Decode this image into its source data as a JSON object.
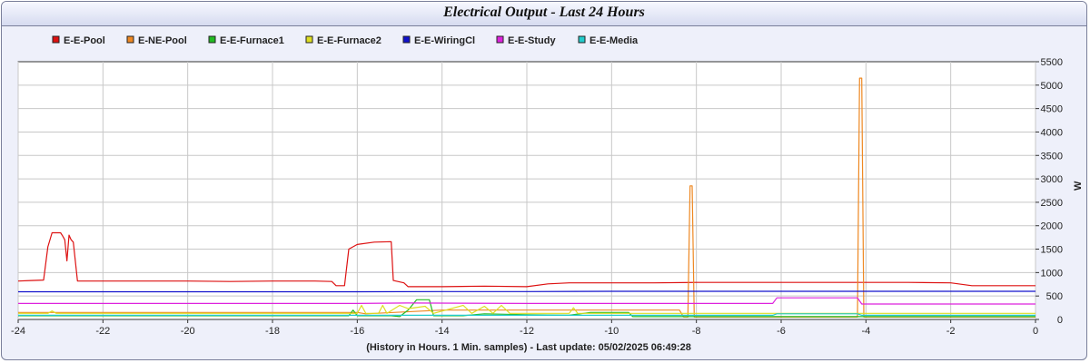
{
  "chart_data": {
    "type": "line",
    "title": "Electrical Output - Last 24 Hours",
    "xlabel": "(History in Hours. 1 Min. samples) - Last update: 05/02/2025 06:49:28",
    "ylabel": "W",
    "xlim": [
      -24,
      0
    ],
    "ylim": [
      0,
      5500
    ],
    "x_ticks": [
      -24,
      -22,
      -20,
      -18,
      -16,
      -14,
      -12,
      -10,
      -8,
      -6,
      -4,
      -2,
      0
    ],
    "y_ticks": [
      0,
      500,
      1000,
      1500,
      2000,
      2500,
      3000,
      3500,
      4000,
      4500,
      5000,
      5500
    ],
    "grid": true,
    "legend_position": "top",
    "series": [
      {
        "name": "E-E-Pool",
        "color": "#dd1111",
        "points": [
          [
            -24,
            820
          ],
          [
            -23.7,
            830
          ],
          [
            -23.4,
            840
          ],
          [
            -23.3,
            1550
          ],
          [
            -23.2,
            1850
          ],
          [
            -23.0,
            1850
          ],
          [
            -22.95,
            1780
          ],
          [
            -22.9,
            1700
          ],
          [
            -22.85,
            1250
          ],
          [
            -22.8,
            1800
          ],
          [
            -22.75,
            1700
          ],
          [
            -22.7,
            1650
          ],
          [
            -22.6,
            820
          ],
          [
            -21,
            820
          ],
          [
            -20,
            820
          ],
          [
            -19,
            810
          ],
          [
            -18,
            820
          ],
          [
            -17,
            820
          ],
          [
            -16.6,
            810
          ],
          [
            -16.5,
            720
          ],
          [
            -16.3,
            720
          ],
          [
            -16.2,
            1500
          ],
          [
            -16.0,
            1600
          ],
          [
            -15.6,
            1650
          ],
          [
            -15.2,
            1660
          ],
          [
            -15.15,
            830
          ],
          [
            -14.9,
            780
          ],
          [
            -14.8,
            700
          ],
          [
            -14,
            700
          ],
          [
            -13,
            710
          ],
          [
            -12,
            700
          ],
          [
            -11.5,
            760
          ],
          [
            -11,
            780
          ],
          [
            -10,
            780
          ],
          [
            -9,
            780
          ],
          [
            -8,
            790
          ],
          [
            -7,
            790
          ],
          [
            -6,
            790
          ],
          [
            -5,
            790
          ],
          [
            -4,
            790
          ],
          [
            -3,
            790
          ],
          [
            -2,
            780
          ],
          [
            -1.5,
            720
          ],
          [
            -1,
            720
          ],
          [
            -0.5,
            720
          ],
          [
            0,
            720
          ]
        ]
      },
      {
        "name": "E-NE-Pool",
        "color": "#ee8822",
        "points": [
          [
            -24,
            150
          ],
          [
            -16,
            150
          ],
          [
            -15.8,
            120
          ],
          [
            -14,
            200
          ],
          [
            -12,
            200
          ],
          [
            -10,
            200
          ],
          [
            -8.4,
            200
          ],
          [
            -8.3,
            50
          ],
          [
            -8.2,
            50
          ],
          [
            -8.15,
            2850
          ],
          [
            -8.1,
            2850
          ],
          [
            -8.05,
            50
          ],
          [
            -4.25,
            50
          ],
          [
            -4.2,
            50
          ],
          [
            -4.15,
            5150
          ],
          [
            -4.1,
            5150
          ],
          [
            -4.05,
            50
          ],
          [
            -3.5,
            50
          ],
          [
            0,
            50
          ]
        ]
      },
      {
        "name": "E-E-Furnace1",
        "color": "#22bb22",
        "points": [
          [
            -24,
            80
          ],
          [
            -16.2,
            80
          ],
          [
            -16.1,
            200
          ],
          [
            -16.0,
            80
          ],
          [
            -15.2,
            80
          ],
          [
            -15.0,
            60
          ],
          [
            -14.8,
            200
          ],
          [
            -14.6,
            420
          ],
          [
            -14.3,
            420
          ],
          [
            -14.2,
            80
          ],
          [
            -13.5,
            80
          ],
          [
            -13,
            120
          ],
          [
            -12,
            100
          ],
          [
            -11,
            90
          ],
          [
            -10.5,
            150
          ],
          [
            -10,
            150
          ],
          [
            -9.6,
            150
          ],
          [
            -9.5,
            60
          ],
          [
            -6,
            60
          ],
          [
            0,
            60
          ]
        ]
      },
      {
        "name": "E-E-Furnace2",
        "color": "#dddd22",
        "points": [
          [
            -24,
            130
          ],
          [
            -23.3,
            130
          ],
          [
            -23.2,
            180
          ],
          [
            -23.1,
            130
          ],
          [
            -16,
            130
          ],
          [
            -15.9,
            300
          ],
          [
            -15.8,
            130
          ],
          [
            -15.5,
            130
          ],
          [
            -15.4,
            300
          ],
          [
            -15.3,
            130
          ],
          [
            -15.0,
            300
          ],
          [
            -14.8,
            230
          ],
          [
            -14.4,
            280
          ],
          [
            -14.2,
            130
          ],
          [
            -13.5,
            300
          ],
          [
            -13.3,
            130
          ],
          [
            -13,
            280
          ],
          [
            -12.8,
            130
          ],
          [
            -12.6,
            300
          ],
          [
            -12.4,
            130
          ],
          [
            -11,
            130
          ],
          [
            -10.9,
            250
          ],
          [
            -10.8,
            130
          ],
          [
            0,
            130
          ]
        ]
      },
      {
        "name": "E-E-WiringCl",
        "color": "#1111cc",
        "points": [
          [
            -24,
            590
          ],
          [
            -20,
            590
          ],
          [
            -16,
            590
          ],
          [
            -14,
            595
          ],
          [
            -12,
            595
          ],
          [
            -10,
            600
          ],
          [
            -8,
            600
          ],
          [
            -6,
            600
          ],
          [
            -4,
            600
          ],
          [
            -2,
            600
          ],
          [
            0,
            600
          ]
        ]
      },
      {
        "name": "E-E-Study",
        "color": "#dd22dd",
        "points": [
          [
            -24,
            340
          ],
          [
            -20,
            340
          ],
          [
            -16,
            340
          ],
          [
            -14.8,
            350
          ],
          [
            -12,
            340
          ],
          [
            -10,
            340
          ],
          [
            -8,
            340
          ],
          [
            -6.2,
            340
          ],
          [
            -6.1,
            460
          ],
          [
            -4.2,
            460
          ],
          [
            -4.1,
            330
          ],
          [
            -2,
            330
          ],
          [
            0,
            330
          ]
        ]
      },
      {
        "name": "E-E-Media",
        "color": "#22cccc",
        "points": [
          [
            -24,
            90
          ],
          [
            -16,
            90
          ],
          [
            -14,
            90
          ],
          [
            -10,
            90
          ],
          [
            -6.2,
            90
          ],
          [
            -6.1,
            120
          ],
          [
            -4.2,
            120
          ],
          [
            -4.1,
            90
          ],
          [
            0,
            90
          ]
        ]
      }
    ]
  }
}
